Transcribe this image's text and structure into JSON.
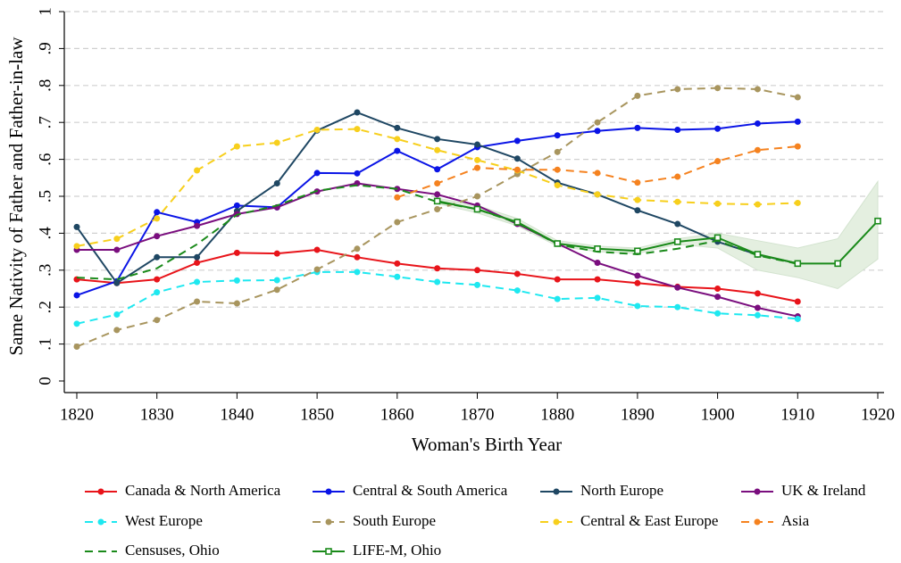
{
  "chart_data": {
    "type": "line",
    "x_label": "Woman's Birth Year",
    "y_label": "Same Nativity of Father and Father-in-law",
    "x": [
      1820,
      1825,
      1830,
      1835,
      1840,
      1845,
      1850,
      1855,
      1860,
      1865,
      1870,
      1875,
      1880,
      1885,
      1890,
      1895,
      1900,
      1905,
      1910,
      1915,
      1920
    ],
    "xlim": [
      1820,
      1920
    ],
    "xticks": [
      1820,
      1830,
      1840,
      1850,
      1860,
      1870,
      1880,
      1890,
      1900,
      1910,
      1920
    ],
    "ylim": [
      0,
      1
    ],
    "yticks": [
      0,
      {
        "value": 0.1,
        "label": ".1"
      },
      {
        "value": 0.2,
        "label": ".2"
      },
      {
        "value": 0.3,
        "label": ".3"
      },
      {
        "value": 0.4,
        "label": ".4"
      },
      {
        "value": 0.5,
        "label": ".5"
      },
      {
        "value": 0.6,
        "label": ".6"
      },
      {
        "value": 0.7,
        "label": ".7"
      },
      {
        "value": 0.8,
        "label": ".8"
      },
      {
        "value": 0.9,
        "label": ".9"
      },
      1
    ],
    "grid": true,
    "series": [
      {
        "name": "Canada & North America",
        "color": "#e8141a",
        "dash": false,
        "marker": "circle",
        "values": [
          0.275,
          0.265,
          0.275,
          0.32,
          0.347,
          0.345,
          0.355,
          0.335,
          0.318,
          0.305,
          0.3,
          0.29,
          0.275,
          0.275,
          0.265,
          0.255,
          0.25,
          0.237,
          0.215,
          null,
          null
        ]
      },
      {
        "name": "Central & South America",
        "color": "#0a14e6",
        "dash": false,
        "marker": "circle",
        "values": [
          0.232,
          0.27,
          0.457,
          0.43,
          0.475,
          0.47,
          0.563,
          0.562,
          0.623,
          0.573,
          0.633,
          0.65,
          0.665,
          0.677,
          0.685,
          0.68,
          0.683,
          0.697,
          0.702,
          null,
          null
        ]
      },
      {
        "name": "North Europe",
        "color": "#1f4763",
        "dash": false,
        "marker": "circle",
        "values": [
          0.417,
          0.265,
          0.335,
          0.335,
          0.46,
          0.535,
          0.678,
          0.727,
          0.685,
          0.655,
          0.64,
          0.602,
          0.537,
          0.505,
          0.462,
          0.425,
          0.377,
          0.342,
          0.318,
          null,
          null
        ]
      },
      {
        "name": "UK & Ireland",
        "color": "#7a0e7e",
        "dash": false,
        "marker": "circle",
        "values": [
          0.355,
          0.355,
          0.392,
          0.42,
          0.452,
          0.47,
          0.513,
          0.535,
          0.52,
          0.505,
          0.475,
          0.425,
          0.372,
          0.32,
          0.285,
          0.253,
          0.228,
          0.198,
          0.175,
          null,
          null
        ]
      },
      {
        "name": "West Europe",
        "color": "#1ee8f0",
        "dash": true,
        "marker": "circle",
        "values": [
          0.155,
          0.18,
          0.24,
          0.268,
          0.272,
          0.273,
          0.295,
          0.295,
          0.282,
          0.268,
          0.26,
          0.245,
          0.222,
          0.225,
          0.203,
          0.2,
          0.183,
          0.178,
          0.168,
          null,
          null
        ]
      },
      {
        "name": "South Europe",
        "color": "#a8955e",
        "dash": true,
        "marker": "circle",
        "values": [
          0.093,
          0.138,
          0.165,
          0.215,
          0.21,
          0.247,
          0.302,
          0.358,
          0.43,
          0.465,
          0.5,
          0.56,
          0.62,
          0.7,
          0.772,
          0.79,
          0.793,
          0.79,
          0.768,
          null,
          null
        ]
      },
      {
        "name": "Central & East Europe",
        "color": "#f7cf1c",
        "dash": true,
        "marker": "circle",
        "values": [
          0.365,
          0.385,
          0.44,
          0.57,
          0.635,
          0.645,
          0.68,
          0.682,
          0.655,
          0.625,
          0.598,
          0.57,
          0.53,
          0.505,
          0.49,
          0.485,
          0.48,
          0.478,
          0.482,
          null,
          null
        ]
      },
      {
        "name": "Asia",
        "color": "#f5821f",
        "dash": true,
        "marker": "circle",
        "values": [
          null,
          null,
          null,
          null,
          null,
          null,
          null,
          null,
          0.497,
          0.535,
          0.577,
          0.572,
          0.572,
          0.563,
          0.537,
          0.553,
          0.595,
          0.625,
          0.635,
          null,
          null
        ]
      },
      {
        "name": "Censuses, Ohio",
        "color": "#1a8a1a",
        "dash": true,
        "marker": "none",
        "values": [
          0.28,
          0.275,
          0.305,
          0.37,
          0.45,
          0.475,
          0.515,
          0.53,
          0.52,
          0.485,
          0.465,
          0.428,
          0.37,
          0.35,
          0.343,
          0.358,
          0.38,
          0.34,
          0.317,
          null,
          null
        ]
      },
      {
        "name": "LIFE-M, Ohio",
        "color": "#1a8a1a",
        "dash": false,
        "marker": "square",
        "values": [
          null,
          null,
          null,
          null,
          null,
          null,
          null,
          null,
          null,
          0.487,
          0.465,
          0.43,
          0.372,
          0.358,
          0.352,
          0.377,
          0.388,
          0.343,
          0.318,
          0.318,
          0.433
        ],
        "band_lower": [
          null,
          null,
          null,
          null,
          null,
          null,
          null,
          null,
          null,
          0.48,
          0.455,
          0.42,
          0.365,
          0.35,
          0.345,
          0.37,
          0.36,
          0.3,
          0.28,
          0.25,
          0.33
        ],
        "band_upper": [
          null,
          null,
          null,
          null,
          null,
          null,
          null,
          null,
          null,
          0.495,
          0.475,
          0.44,
          0.38,
          0.365,
          0.36,
          0.385,
          0.4,
          0.38,
          0.36,
          0.385,
          0.54
        ],
        "band_color": "#e4efe0"
      }
    ]
  }
}
